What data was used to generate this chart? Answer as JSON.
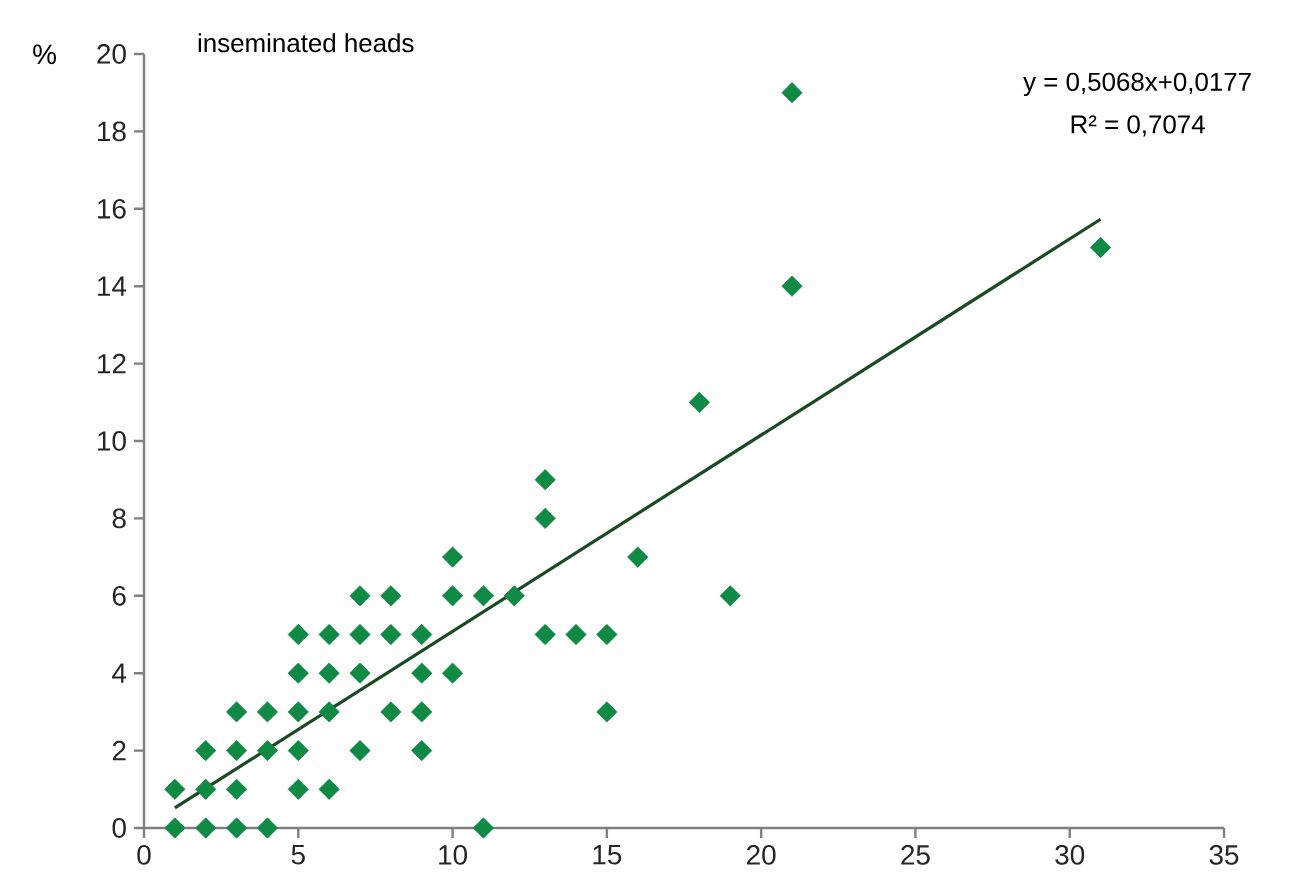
{
  "chart_data": {
    "type": "scatter",
    "title": "inseminated heads",
    "ylabel": "%",
    "xlim": [
      0,
      35
    ],
    "xticks": [
      0,
      5,
      10,
      15,
      20,
      25,
      30,
      35
    ],
    "ylim": [
      0,
      20
    ],
    "yticks": [
      0,
      2,
      4,
      6,
      8,
      10,
      12,
      14,
      16,
      18,
      20
    ],
    "grid": false,
    "marker": "diamond",
    "annotations": [
      "y = 0,5068x+0,0177",
      "R² = 0,7074"
    ],
    "series": [
      {
        "color": "#0e8a44",
        "x": [
          1,
          2,
          3,
          4,
          11,
          1,
          2,
          3,
          5,
          6,
          2,
          3,
          4,
          5,
          7,
          9,
          3,
          4,
          5,
          6,
          8,
          9,
          15,
          5,
          6,
          7,
          9,
          10,
          5,
          6,
          7,
          8,
          9,
          13,
          14,
          15,
          7,
          8,
          10,
          11,
          12,
          19,
          10,
          16,
          13,
          13,
          18,
          21,
          21,
          31
        ],
        "values": [
          0,
          0,
          0,
          0,
          0,
          1,
          1,
          1,
          1,
          1,
          2,
          2,
          2,
          2,
          2,
          2,
          3,
          3,
          3,
          3,
          3,
          3,
          3,
          4,
          4,
          4,
          4,
          4,
          5,
          5,
          5,
          5,
          5,
          5,
          5,
          5,
          6,
          6,
          6,
          6,
          6,
          6,
          7,
          7,
          8,
          9,
          11,
          14,
          19,
          15
        ]
      },
      {
        "type": "line",
        "color": "#1a4a22",
        "line_style": "solid",
        "marker": "none",
        "x": [
          1,
          31
        ],
        "values": [
          0.52,
          15.73
        ]
      }
    ]
  }
}
